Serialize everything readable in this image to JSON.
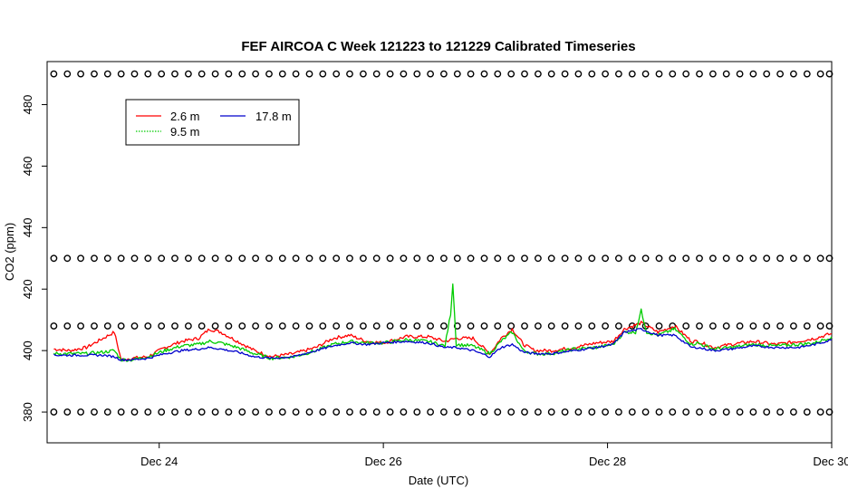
{
  "chart_data": {
    "type": "line",
    "title": "FEF AIRCOA C  Week 121223 to 121229  Calibrated Timeseries",
    "xlabel": "Date (UTC)",
    "ylabel": "CO2 (ppm)",
    "xlim": [
      23.0,
      30.0
    ],
    "ylim": [
      370,
      494
    ],
    "x_ticks": [
      {
        "value": 24,
        "label": "Dec 24"
      },
      {
        "value": 26,
        "label": "Dec 26"
      },
      {
        "value": 28,
        "label": "Dec 28"
      },
      {
        "value": 30,
        "label": "Dec 30"
      }
    ],
    "y_ticks": [
      380,
      400,
      420,
      440,
      460,
      480
    ],
    "grid": false,
    "legend_position": "top-left",
    "series": [
      {
        "name": "2.6 m",
        "color": "#ff0000",
        "x": [
          23.06,
          23.2,
          23.35,
          23.5,
          23.6,
          23.66,
          23.75,
          23.9,
          24.05,
          24.2,
          24.35,
          24.45,
          24.55,
          24.7,
          24.85,
          25.0,
          25.2,
          25.4,
          25.55,
          25.7,
          25.85,
          26.0,
          26.2,
          26.4,
          26.55,
          26.65,
          26.8,
          26.95,
          27.05,
          27.15,
          27.25,
          27.35,
          27.5,
          27.7,
          27.9,
          28.05,
          28.15,
          28.3,
          28.45,
          28.6,
          28.75,
          28.8,
          28.95,
          29.1,
          29.3,
          29.5,
          29.7,
          29.85,
          30.0
        ],
        "values": [
          400.5,
          400,
          401,
          404,
          406,
          397,
          397.5,
          398,
          401,
          403,
          404,
          407,
          406,
          403,
          400,
          398,
          399,
          401,
          404,
          405,
          403,
          402.5,
          404.5,
          404.5,
          403,
          404,
          404,
          399,
          404,
          407,
          402,
          400,
          400,
          401,
          402.5,
          403,
          407,
          409,
          406,
          408,
          403,
          403,
          401,
          402,
          403,
          402,
          403,
          404,
          405.5
        ]
      },
      {
        "name": "9.5 m",
        "color": "#00cc00",
        "x": [
          23.06,
          23.2,
          23.35,
          23.5,
          23.6,
          23.66,
          23.75,
          23.9,
          24.05,
          24.2,
          24.35,
          24.45,
          24.55,
          24.7,
          24.85,
          25.0,
          25.2,
          25.4,
          25.55,
          25.7,
          25.85,
          26.0,
          26.2,
          26.4,
          26.55,
          26.6,
          26.62,
          26.65,
          26.8,
          26.95,
          27.05,
          27.15,
          27.25,
          27.35,
          27.5,
          27.7,
          27.9,
          28.05,
          28.15,
          28.25,
          28.3,
          28.35,
          28.45,
          28.6,
          28.75,
          28.8,
          28.95,
          29.1,
          29.3,
          29.5,
          29.7,
          29.85,
          30.0
        ],
        "values": [
          399,
          399,
          399,
          399.5,
          400,
          397,
          397,
          398,
          400,
          401.5,
          402,
          403,
          402.5,
          401,
          399,
          397.5,
          398,
          400,
          402,
          403,
          402.5,
          402.5,
          403.5,
          403,
          401.5,
          412,
          422,
          402,
          401.5,
          399,
          403,
          406,
          400,
          399,
          399,
          400.5,
          401,
          402,
          406,
          406,
          413,
          406,
          405,
          407,
          402,
          402.5,
          400.5,
          401,
          402,
          401.5,
          402,
          402.5,
          404.5
        ]
      },
      {
        "name": "17.8 m",
        "color": "#0000cc",
        "x": [
          23.06,
          23.2,
          23.35,
          23.5,
          23.6,
          23.66,
          23.75,
          23.9,
          24.05,
          24.2,
          24.35,
          24.45,
          24.55,
          24.7,
          24.85,
          25.0,
          25.2,
          25.4,
          25.55,
          25.7,
          25.85,
          26.0,
          26.2,
          26.4,
          26.55,
          26.65,
          26.8,
          26.95,
          27.05,
          27.15,
          27.25,
          27.35,
          27.5,
          27.7,
          27.9,
          28.05,
          28.15,
          28.3,
          28.45,
          28.6,
          28.75,
          28.8,
          28.95,
          29.1,
          29.3,
          29.5,
          29.7,
          29.85,
          30.0
        ],
        "values": [
          398.5,
          398.5,
          398.5,
          398.5,
          398,
          397,
          397,
          397.5,
          399,
          400,
          400.5,
          401,
          400.5,
          399.5,
          398,
          397.5,
          398,
          400,
          401.5,
          402.5,
          402,
          402.5,
          403,
          402.5,
          401,
          401,
          400,
          398,
          401,
          402,
          399.5,
          399,
          399,
          400,
          401,
          402,
          406,
          407,
          405,
          405,
          401,
          401,
          400,
          400.5,
          401.5,
          401,
          401,
          402,
          403.5
        ]
      },
      {
        "name": "",
        "color": "#000000",
        "style": "points",
        "x": [
          23.06,
          23.18,
          23.3,
          23.42,
          23.54,
          23.66,
          23.78,
          23.9,
          24.02,
          24.14,
          24.26,
          24.38,
          24.5,
          24.62,
          24.74,
          24.86,
          24.98,
          25.1,
          25.22,
          25.34,
          25.46,
          25.58,
          25.7,
          25.82,
          25.94,
          26.06,
          26.18,
          26.3,
          26.42,
          26.54,
          26.66,
          26.78,
          26.9,
          27.02,
          27.14,
          27.26,
          27.38,
          27.5,
          27.62,
          27.74,
          27.86,
          27.98,
          28.1,
          28.22,
          28.34,
          28.46,
          28.58,
          28.7,
          28.82,
          28.94,
          29.06,
          29.18,
          29.3,
          29.42,
          29.54,
          29.66,
          29.78,
          29.9,
          29.98
        ],
        "levels": [
          490,
          430,
          408,
          380
        ]
      }
    ]
  }
}
